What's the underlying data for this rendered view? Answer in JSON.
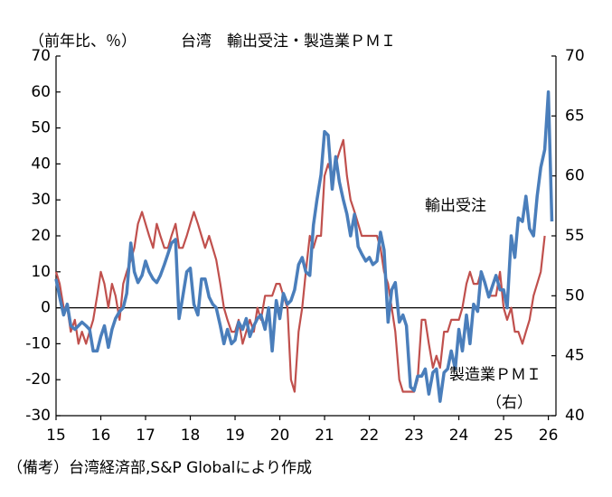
{
  "chart_data": {
    "type": "line",
    "title": "台湾　輸出受注・製造業ＰＭＩ",
    "y_label": "（前年比、％）",
    "note": "（備考）台湾経済部,S&P Globalにより作成",
    "annotations": [
      "（右）"
    ],
    "x": [
      15,
      15.08,
      15.17,
      15.25,
      15.33,
      15.42,
      15.5,
      15.58,
      15.67,
      15.75,
      15.83,
      15.92,
      16,
      16.08,
      16.17,
      16.25,
      16.33,
      16.42,
      16.5,
      16.58,
      16.67,
      16.75,
      16.83,
      16.92,
      17,
      17.08,
      17.17,
      17.25,
      17.33,
      17.42,
      17.5,
      17.58,
      17.67,
      17.75,
      17.83,
      17.92,
      18,
      18.08,
      18.17,
      18.25,
      18.33,
      18.42,
      18.5,
      18.58,
      18.67,
      18.75,
      18.83,
      18.92,
      19,
      19.08,
      19.17,
      19.25,
      19.33,
      19.42,
      19.5,
      19.58,
      19.67,
      19.75,
      19.83,
      19.92,
      20,
      20.08,
      20.17,
      20.25,
      20.33,
      20.42,
      20.5,
      20.58,
      20.67,
      20.75,
      20.83,
      20.92,
      21,
      21.08,
      21.17,
      21.25,
      21.33,
      21.42,
      21.5,
      21.58,
      21.67,
      21.75,
      21.83,
      21.92,
      22,
      22.08,
      22.17,
      22.25,
      22.33,
      22.42,
      22.5,
      22.58,
      22.67,
      22.75,
      22.83,
      22.92,
      23,
      23.08,
      23.17,
      23.25,
      23.33,
      23.42,
      23.5,
      23.58,
      23.67,
      23.75,
      23.83,
      23.92,
      24,
      24.08,
      24.17,
      24.25,
      24.33,
      24.42,
      24.5,
      24.58,
      24.67,
      24.75,
      24.83,
      24.92,
      25,
      25.08,
      25.17,
      25.25,
      25.33,
      25.42,
      25.5,
      25.58,
      25.67,
      25.75,
      25.83,
      25.92,
      26,
      26.08
    ],
    "series": [
      {
        "name": "輸出受注",
        "color": "#4a7ebb",
        "axis": "y",
        "values": [
          8,
          3,
          -2,
          1,
          -5,
          -6,
          -5,
          -4,
          -5,
          -6,
          -12,
          -12,
          -8,
          -5,
          -11,
          -6,
          -3,
          -1,
          0,
          4,
          18,
          10,
          7,
          9,
          13,
          10,
          8,
          7,
          9,
          12,
          15,
          18,
          19,
          -3,
          3,
          10,
          11,
          1,
          -2,
          8,
          8,
          3,
          1,
          0,
          -5,
          -10,
          -6,
          -10,
          -9,
          -4,
          -6,
          -3,
          -8,
          -5,
          -3,
          -2,
          -6,
          0,
          -12,
          2,
          -3,
          4,
          1,
          2,
          5,
          12,
          14,
          10,
          9,
          23,
          30,
          37,
          49,
          48,
          33,
          42,
          35,
          30,
          26,
          20,
          26,
          17,
          15,
          13,
          14,
          12,
          13,
          21,
          16,
          -4,
          5,
          7,
          -4,
          -2,
          -5,
          -22,
          -23,
          -19,
          -19,
          -17,
          -24,
          -18,
          -17,
          -26,
          -18,
          -17,
          -12,
          -17,
          -6,
          -12,
          -2,
          -10,
          1,
          -1,
          10,
          7,
          3,
          6,
          9,
          5,
          5,
          0,
          20,
          14,
          25,
          24,
          31,
          22,
          20,
          31,
          39,
          44,
          60,
          24
        ]
      },
      {
        "name": "製造業ＰＭＩ",
        "color": "#c0504d",
        "axis": "y2",
        "values": [
          52,
          51,
          49,
          49,
          47,
          48,
          46,
          47,
          46,
          47,
          48,
          50,
          52,
          51,
          49,
          51,
          50,
          48,
          51,
          52,
          53,
          54,
          56,
          57,
          56,
          55,
          54,
          56,
          55,
          54,
          54,
          55,
          56,
          54,
          54,
          55,
          56,
          57,
          56,
          55,
          54,
          55,
          54,
          53,
          51,
          49,
          48,
          47,
          47,
          48,
          46,
          47,
          48,
          47,
          49,
          48,
          50,
          50,
          50,
          51,
          51,
          50,
          49,
          43,
          42,
          47,
          49,
          52,
          55,
          54,
          55,
          55,
          60,
          61,
          60,
          61,
          62,
          63,
          60,
          58,
          57,
          56,
          55,
          55,
          55,
          55,
          55,
          54,
          52,
          51,
          49,
          47,
          43,
          42,
          42,
          42,
          42,
          43,
          48,
          48,
          46,
          44,
          45,
          44,
          47,
          47,
          48,
          48,
          48,
          49,
          51,
          52,
          51,
          51,
          52,
          51,
          50,
          50,
          50,
          52,
          49,
          48,
          49,
          47,
          47,
          46,
          47,
          48,
          50,
          51,
          52,
          55,
          null,
          null
        ]
      }
    ],
    "xlim": [
      15,
      26.17
    ],
    "xticks": [
      15,
      16,
      17,
      18,
      19,
      20,
      21,
      22,
      23,
      24,
      25,
      26
    ],
    "ylim": [
      -30,
      70
    ],
    "yticks": [
      -30,
      -20,
      -10,
      0,
      10,
      20,
      30,
      40,
      50,
      60,
      70
    ],
    "y2lim": [
      40,
      70
    ],
    "y2ticks": [
      40,
      45,
      50,
      55,
      60,
      65,
      70
    ],
    "grid": false
  }
}
